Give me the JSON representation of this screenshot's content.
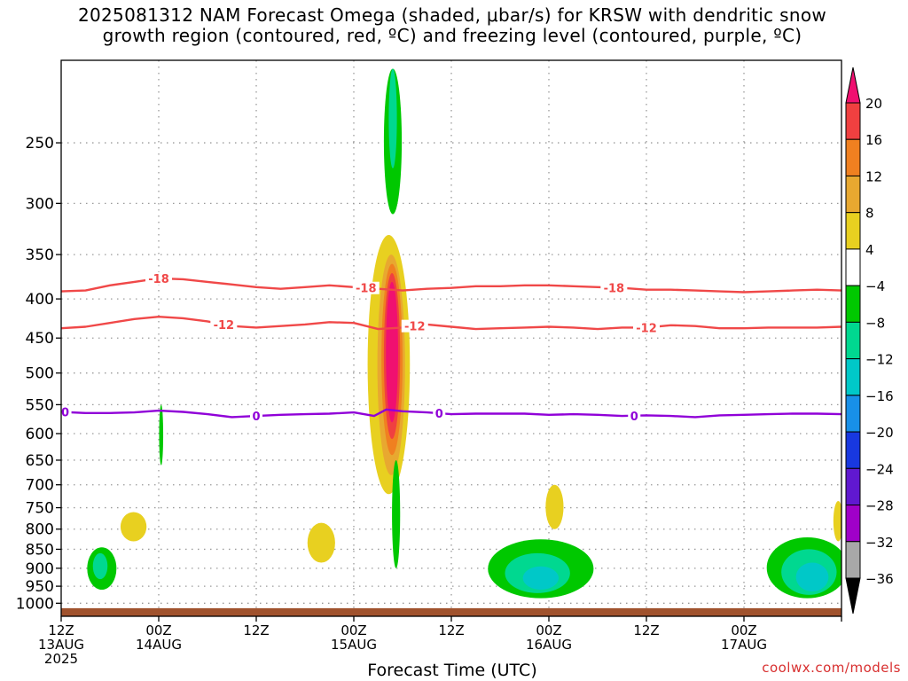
{
  "title": {
    "line1": "2025081312 NAM Forecast Omega (shaded, μbar/s) for KRSW with dendritic snow",
    "line2": "growth region (contoured, red, ºC) and freezing level (contoured, purple, ºC)"
  },
  "credit": "coolwx.com/models",
  "chart_data": {
    "type": "contour",
    "title": "2025081312 NAM Forecast Omega (shaded, μbar/s) for KRSW with dendritic snow growth region (contoured, red, ºC) and freezing level (contoured, purple, ºC)",
    "xlabel": "Forecast Time (UTC)",
    "ylabel": "",
    "x_range_hours": [
      0,
      96
    ],
    "y_axis": {
      "scale": "log",
      "reversed": true,
      "range_hPa": [
        1040,
        195
      ]
    },
    "y_ticks": [
      250,
      300,
      350,
      400,
      450,
      500,
      550,
      600,
      650,
      700,
      750,
      800,
      850,
      900,
      950,
      1000
    ],
    "x_ticks": [
      {
        "hour": 0,
        "line1": "12Z",
        "line2": "13AUG",
        "line3": "2025"
      },
      {
        "hour": 12,
        "line1": "00Z",
        "line2": "14AUG",
        "line3": ""
      },
      {
        "hour": 24,
        "line1": "12Z",
        "line2": "",
        "line3": ""
      },
      {
        "hour": 36,
        "line1": "00Z",
        "line2": "15AUG",
        "line3": ""
      },
      {
        "hour": 48,
        "line1": "12Z",
        "line2": "",
        "line3": ""
      },
      {
        "hour": 60,
        "line1": "00Z",
        "line2": "16AUG",
        "line3": ""
      },
      {
        "hour": 72,
        "line1": "12Z",
        "line2": "",
        "line3": ""
      },
      {
        "hour": 84,
        "line1": "00Z",
        "line2": "17AUG",
        "line3": ""
      }
    ],
    "grid": true,
    "colorbar": {
      "placement": "right",
      "labels": [
        "20",
        "16",
        "12",
        "8",
        "4",
        "−4",
        "−8",
        "−12",
        "−16",
        "−20",
        "−24",
        "−28",
        "−32",
        "−36"
      ],
      "colors": [
        "#f01070",
        "#f04040",
        "#f08020",
        "#e8a830",
        "#e8d020",
        "#ffffff",
        "#00c800",
        "#00d890",
        "#00c8c8",
        "#1890e8",
        "#1838e0",
        "#6018d0",
        "#a000c8",
        "#a8a8a8",
        "#000000"
      ]
    },
    "contours": [
      {
        "label": "-18",
        "color": "#f04848",
        "points": [
          [
            0,
            391
          ],
          [
            3,
            390
          ],
          [
            6,
            384
          ],
          [
            9,
            380
          ],
          [
            12,
            376
          ],
          [
            15,
            377
          ],
          [
            18,
            380
          ],
          [
            21,
            383
          ],
          [
            24,
            386
          ],
          [
            27,
            388
          ],
          [
            30,
            386
          ],
          [
            33,
            384
          ],
          [
            36,
            386
          ],
          [
            39,
            388
          ],
          [
            42,
            390
          ],
          [
            45,
            388
          ],
          [
            48,
            387
          ],
          [
            51,
            385
          ],
          [
            54,
            385
          ],
          [
            57,
            384
          ],
          [
            60,
            384
          ],
          [
            63,
            385
          ],
          [
            66,
            386
          ],
          [
            69,
            387
          ],
          [
            72,
            389
          ],
          [
            75,
            389
          ],
          [
            78,
            390
          ],
          [
            81,
            391
          ],
          [
            84,
            392
          ],
          [
            87,
            391
          ],
          [
            90,
            390
          ],
          [
            93,
            389
          ],
          [
            96,
            390
          ]
        ],
        "label_hours": [
          12,
          37.5,
          68
        ]
      },
      {
        "label": "-12",
        "color": "#f04848",
        "points": [
          [
            0,
            437
          ],
          [
            3,
            435
          ],
          [
            6,
            430
          ],
          [
            9,
            425
          ],
          [
            12,
            422
          ],
          [
            15,
            424
          ],
          [
            18,
            428
          ],
          [
            21,
            434
          ],
          [
            24,
            436
          ],
          [
            27,
            434
          ],
          [
            30,
            432
          ],
          [
            33,
            429
          ],
          [
            36,
            430
          ],
          [
            39,
            438
          ],
          [
            42,
            436
          ],
          [
            45,
            432
          ],
          [
            48,
            435
          ],
          [
            51,
            438
          ],
          [
            54,
            437
          ],
          [
            57,
            436
          ],
          [
            60,
            435
          ],
          [
            63,
            436
          ],
          [
            66,
            438
          ],
          [
            69,
            436
          ],
          [
            72,
            436
          ],
          [
            75,
            433
          ],
          [
            78,
            434
          ],
          [
            81,
            437
          ],
          [
            84,
            437
          ],
          [
            87,
            436
          ],
          [
            90,
            436
          ],
          [
            93,
            436
          ],
          [
            96,
            435
          ]
        ],
        "label_hours": [
          20,
          43.5,
          72
        ]
      },
      {
        "label": "0",
        "color": "#9000d8",
        "points": [
          [
            0,
            562
          ],
          [
            3,
            564
          ],
          [
            6,
            564
          ],
          [
            9,
            563
          ],
          [
            12,
            560
          ],
          [
            15,
            562
          ],
          [
            18,
            566
          ],
          [
            21,
            571
          ],
          [
            24,
            569
          ],
          [
            27,
            567
          ],
          [
            30,
            566
          ],
          [
            33,
            565
          ],
          [
            36,
            563
          ],
          [
            38.5,
            569
          ],
          [
            40,
            558
          ],
          [
            42,
            561
          ],
          [
            45,
            563
          ],
          [
            48,
            566
          ],
          [
            51,
            565
          ],
          [
            54,
            565
          ],
          [
            57,
            565
          ],
          [
            60,
            567
          ],
          [
            63,
            566
          ],
          [
            66,
            567
          ],
          [
            69,
            569
          ],
          [
            72,
            568
          ],
          [
            75,
            569
          ],
          [
            78,
            571
          ],
          [
            81,
            568
          ],
          [
            84,
            567
          ],
          [
            87,
            566
          ],
          [
            90,
            565
          ],
          [
            93,
            565
          ],
          [
            96,
            566
          ]
        ],
        "label_hours": [
          0.5,
          24,
          46.5,
          70.5
        ]
      }
    ],
    "shaded_regions": [
      {
        "level": "-4",
        "color": "#00c800",
        "center": [
          40.8,
          263
        ],
        "extent_hours": 1.1,
        "extent_hPa": [
          200,
          310
        ]
      },
      {
        "level": "-8",
        "color": "#00d890",
        "center": [
          40.8,
          235
        ],
        "extent_hours": 0.5,
        "extent_hPa": [
          200,
          270
        ]
      },
      {
        "level": "4",
        "color": "#e8d020",
        "center": [
          40.3,
          520
        ],
        "extent_hours": 2.6,
        "extent_hPa": [
          330,
          720
        ]
      },
      {
        "level": "8",
        "color": "#e8a830",
        "center": [
          40.6,
          500
        ],
        "extent_hours": 1.7,
        "extent_hPa": [
          350,
          680
        ]
      },
      {
        "level": "12",
        "color": "#f08020",
        "center": [
          40.7,
          490
        ],
        "extent_hours": 1.3,
        "extent_hPa": [
          360,
          640
        ]
      },
      {
        "level": "16",
        "color": "#f04040",
        "center": [
          40.7,
          480
        ],
        "extent_hours": 1.0,
        "extent_hPa": [
          370,
          610
        ]
      },
      {
        "level": "20",
        "color": "#f01070",
        "center": [
          40.7,
          470
        ],
        "extent_hours": 0.75,
        "extent_hPa": [
          380,
          580
        ]
      },
      {
        "level": "-4",
        "color": "#00c800",
        "center": [
          41.2,
          780
        ],
        "extent_hours": 0.5,
        "extent_hPa": [
          650,
          900
        ]
      },
      {
        "level": "-4",
        "color": "#00c800",
        "center": [
          12.3,
          600
        ],
        "extent_hours": 0.25,
        "extent_hPa": [
          550,
          660
        ]
      },
      {
        "level": "-4",
        "color": "#00c800",
        "center": [
          5.0,
          900
        ],
        "extent_hours": 1.8,
        "extent_hPa": [
          845,
          960
        ]
      },
      {
        "level": "-8",
        "color": "#00d890",
        "center": [
          4.8,
          895
        ],
        "extent_hours": 0.9,
        "extent_hPa": [
          860,
          930
        ]
      },
      {
        "level": "4",
        "color": "#e8d020",
        "center": [
          8.9,
          795
        ],
        "extent_hours": 1.6,
        "extent_hPa": [
          760,
          830
        ]
      },
      {
        "level": "4",
        "color": "#e8d020",
        "center": [
          32.0,
          825
        ],
        "extent_hours": 1.7,
        "extent_hPa": [
          785,
          885
        ]
      },
      {
        "level": "4",
        "color": "#e8d020",
        "center": [
          60.7,
          745
        ],
        "extent_hours": 1.1,
        "extent_hPa": [
          700,
          800
        ]
      },
      {
        "level": "-4",
        "color": "#00c800",
        "center": [
          59.0,
          915
        ],
        "extent_hours": 6.5,
        "extent_hPa": [
          825,
          985
        ]
      },
      {
        "level": "-8",
        "color": "#00d890",
        "center": [
          58.6,
          925
        ],
        "extent_hours": 4.0,
        "extent_hPa": [
          860,
          970
        ]
      },
      {
        "level": "-12",
        "color": "#00c8c8",
        "center": [
          59.0,
          935
        ],
        "extent_hours": 2.2,
        "extent_hPa": [
          895,
          960
        ]
      },
      {
        "level": "4",
        "color": "#e8d020",
        "center": [
          95.6,
          780
        ],
        "extent_hours": 0.6,
        "extent_hPa": [
          735,
          830
        ]
      },
      {
        "level": "-4",
        "color": "#00c800",
        "center": [
          91.8,
          910
        ],
        "extent_hours": 5.0,
        "extent_hPa": [
          820,
          985
        ]
      },
      {
        "level": "-8",
        "color": "#00d890",
        "center": [
          92.0,
          920
        ],
        "extent_hours": 3.4,
        "extent_hPa": [
          850,
          975
        ]
      },
      {
        "level": "-12",
        "color": "#00c8c8",
        "center": [
          92.4,
          925
        ],
        "extent_hours": 2.0,
        "extent_hPa": [
          885,
          965
        ]
      }
    ],
    "ground_layer": {
      "color": "#a0522d",
      "from_hPa": 1015,
      "to_hPa": 1040
    }
  }
}
